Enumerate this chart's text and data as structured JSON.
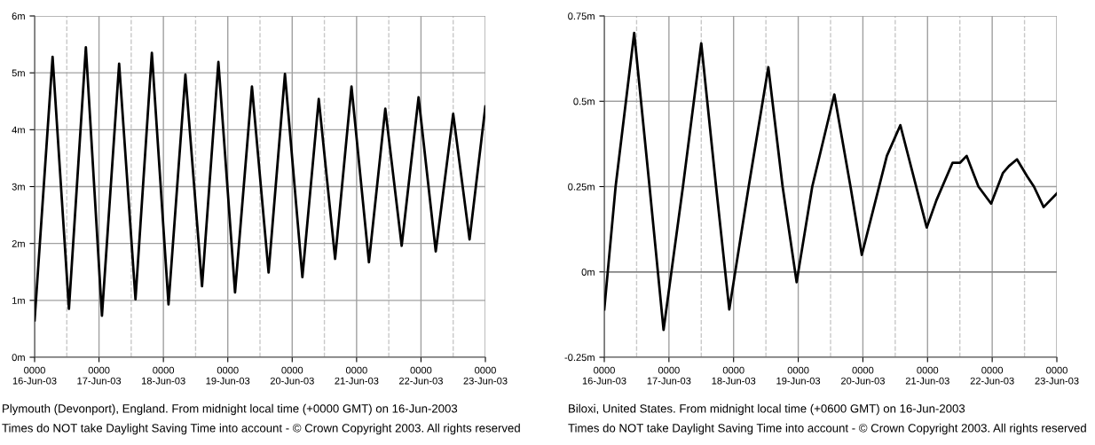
{
  "chart_data": [
    {
      "type": "line",
      "x": [
        "2003-06-16T00:00",
        "2003-06-16T06:42",
        "2003-06-16T12:48",
        "2003-06-16T19:06",
        "2003-06-17T01:06",
        "2003-06-17T07:30",
        "2003-06-17T13:36",
        "2003-06-17T19:42",
        "2003-06-18T01:54",
        "2003-06-18T08:12",
        "2003-06-18T14:24",
        "2003-06-18T20:30",
        "2003-06-19T02:42",
        "2003-06-19T09:00",
        "2003-06-19T15:12",
        "2003-06-19T21:18",
        "2003-06-20T03:48",
        "2003-06-20T09:54",
        "2003-06-20T16:00",
        "2003-06-20T22:06",
        "2003-06-21T04:36",
        "2003-06-21T10:42",
        "2003-06-21T16:48",
        "2003-06-21T23:06",
        "2003-06-22T05:30",
        "2003-06-22T12:00",
        "2003-06-22T18:06",
        "2003-06-23T00:00"
      ],
      "series": [
        {
          "color": "#000000",
          "values": [
            0.65,
            5.28,
            0.85,
            5.45,
            0.73,
            5.16,
            1.02,
            5.35,
            0.93,
            4.97,
            1.25,
            5.19,
            1.14,
            4.76,
            1.49,
            4.98,
            1.41,
            4.54,
            1.73,
            4.76,
            1.67,
            4.37,
            1.96,
            4.57,
            1.86,
            4.28,
            2.07,
            4.41
          ]
        }
      ],
      "xlim": [
        "2003-06-16",
        "2003-06-23"
      ],
      "xticks": [
        {
          "value": "2003-06-16",
          "label": "0000\n16-Jun-03"
        },
        {
          "value": "2003-06-16T12:00",
          "label": null
        },
        {
          "value": "2003-06-17",
          "label": "0000\n17-Jun-03"
        },
        {
          "value": "2003-06-17T12:00",
          "label": null
        },
        {
          "value": "2003-06-18",
          "label": "0000\n18-Jun-03"
        },
        {
          "value": "2003-06-18T12:00",
          "label": null
        },
        {
          "value": "2003-06-19",
          "label": "0000\n19-Jun-03"
        },
        {
          "value": "2003-06-19T12:00",
          "label": null
        },
        {
          "value": "2003-06-20",
          "label": "0000\n20-Jun-03"
        },
        {
          "value": "2003-06-20T12:00",
          "label": null
        },
        {
          "value": "2003-06-21",
          "label": "0000\n21-Jun-03"
        },
        {
          "value": "2003-06-21T12:00",
          "label": null
        },
        {
          "value": "2003-06-22",
          "label": "0000\n22-Jun-03"
        },
        {
          "value": "2003-06-22T12:00",
          "label": null
        },
        {
          "value": "2003-06-23",
          "label": "0000\n23-Jun-03"
        }
      ],
      "ylim": [
        0,
        6
      ],
      "yticks": [
        {
          "value": 0,
          "label": "0m"
        },
        {
          "value": 1,
          "label": "1m"
        },
        {
          "value": 2,
          "label": "2m"
        },
        {
          "value": 3,
          "label": "3m"
        },
        {
          "value": 4,
          "label": "4m"
        },
        {
          "value": 5,
          "label": "5m"
        },
        {
          "value": 6,
          "label": "6m"
        }
      ],
      "grid": true,
      "line_style": "solid",
      "marker": "none",
      "annotations": [
        "Plymouth (Devonport), England. From midnight local time (+0000 GMT) on 16-Jun-2003",
        "Times do NOT take Daylight Saving Time into account - © Crown Copyright 2003. All rights reserved"
      ]
    },
    {
      "type": "line",
      "x": [
        "2003-06-16T00:00",
        "2003-06-16T04:12",
        "2003-06-16T11:06",
        "2003-06-16T16:48",
        "2003-06-16T22:00",
        "2003-06-17T05:12",
        "2003-06-17T12:00",
        "2003-06-17T17:30",
        "2003-06-17T22:24",
        "2003-06-18T05:36",
        "2003-06-18T12:54",
        "2003-06-18T18:12",
        "2003-06-18T23:24",
        "2003-06-19T05:12",
        "2003-06-19T13:24",
        "2003-06-19T19:24",
        "2003-06-19T23:36",
        "2003-06-20T08:54",
        "2003-06-20T13:54",
        "2003-06-20T23:42",
        "2003-06-21T03:18",
        "2003-06-21T09:18",
        "2003-06-21T12:06",
        "2003-06-21T14:30",
        "2003-06-21T18:54",
        "2003-06-21T23:36",
        "2003-06-22T04:00",
        "2003-06-22T06:12",
        "2003-06-22T09:12",
        "2003-06-22T13:00",
        "2003-06-22T15:30",
        "2003-06-22T19:06",
        "2003-06-23T00:00"
      ],
      "series": [
        {
          "color": "#000000",
          "values": [
            -0.11,
            0.25,
            0.7,
            0.25,
            -0.17,
            0.25,
            0.67,
            0.25,
            -0.11,
            0.25,
            0.6,
            0.25,
            -0.03,
            0.25,
            0.52,
            0.25,
            0.05,
            0.34,
            0.43,
            0.13,
            0.21,
            0.32,
            0.32,
            0.34,
            0.25,
            0.2,
            0.29,
            0.31,
            0.33,
            0.28,
            0.25,
            0.19,
            0.23
          ]
        }
      ],
      "xlim": [
        "2003-06-16",
        "2003-06-23"
      ],
      "xticks": [
        {
          "value": "2003-06-16",
          "label": "0000\n16-Jun-03"
        },
        {
          "value": "2003-06-16T12:00",
          "label": null
        },
        {
          "value": "2003-06-17",
          "label": "0000\n17-Jun-03"
        },
        {
          "value": "2003-06-17T12:00",
          "label": null
        },
        {
          "value": "2003-06-18",
          "label": "0000\n18-Jun-03"
        },
        {
          "value": "2003-06-18T12:00",
          "label": null
        },
        {
          "value": "2003-06-19",
          "label": "0000\n19-Jun-03"
        },
        {
          "value": "2003-06-19T12:00",
          "label": null
        },
        {
          "value": "2003-06-20",
          "label": "0000\n20-Jun-03"
        },
        {
          "value": "2003-06-20T12:00",
          "label": null
        },
        {
          "value": "2003-06-21",
          "label": "0000\n21-Jun-03"
        },
        {
          "value": "2003-06-21T12:00",
          "label": null
        },
        {
          "value": "2003-06-22",
          "label": "0000\n22-Jun-03"
        },
        {
          "value": "2003-06-22T12:00",
          "label": null
        },
        {
          "value": "2003-06-23",
          "label": "0000\n23-Jun-03"
        }
      ],
      "ylim": [
        -0.25,
        0.75
      ],
      "yticks": [
        {
          "value": -0.25,
          "label": "-0.25m"
        },
        {
          "value": 0,
          "label": "0m"
        },
        {
          "value": 0.25,
          "label": "0.25m"
        },
        {
          "value": 0.5,
          "label": "0.5m"
        },
        {
          "value": 0.75,
          "label": "0.75m"
        }
      ],
      "grid": true,
      "line_style": "solid",
      "marker": "none",
      "ref_lines": [
        {
          "axis": "y",
          "value": 0,
          "color": "#808080"
        }
      ],
      "annotations": [
        "Biloxi, United States. From midnight local time (+0600 GMT) on 16-Jun-2003",
        "Times do NOT take Daylight Saving Time into account - © Crown Copyright 2003. All rights reserved"
      ]
    }
  ]
}
